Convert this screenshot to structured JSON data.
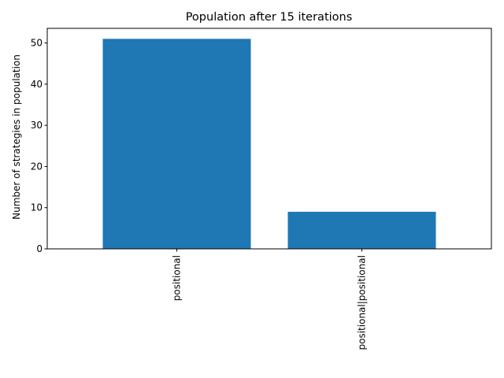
{
  "chart_data": {
    "type": "bar",
    "title": "Population after 15 iterations",
    "xlabel": "",
    "ylabel": "Number of strategies in population",
    "categories": [
      "positional",
      "positional|positional"
    ],
    "values": [
      51,
      9
    ],
    "ylim": [
      0,
      53.55
    ],
    "yticks": [
      0,
      10,
      20,
      30,
      40,
      50
    ],
    "bar_color": "#1f77b4",
    "grid": false
  }
}
